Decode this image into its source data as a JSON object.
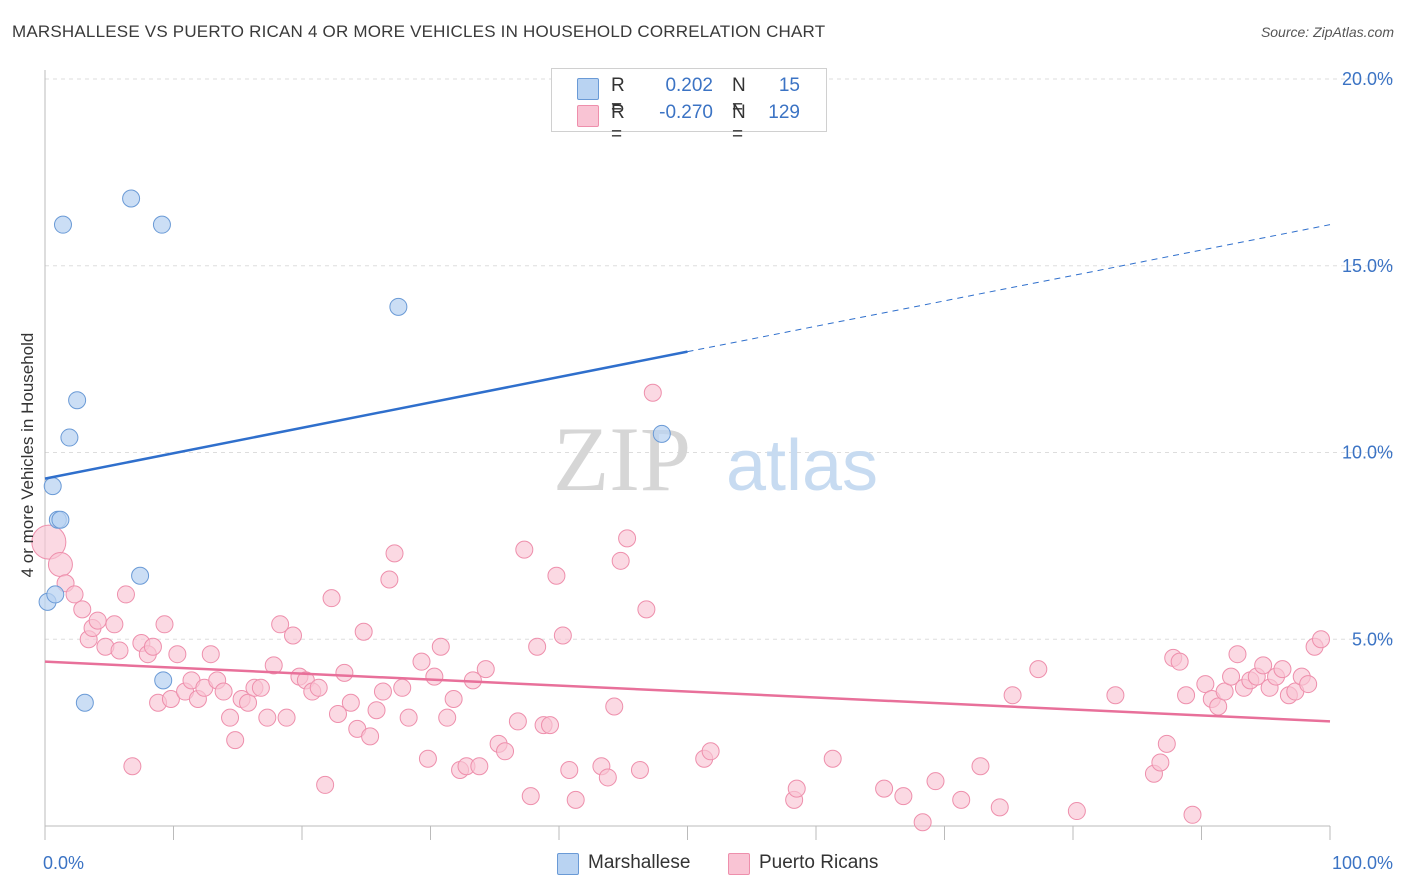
{
  "title": "MARSHALLESE VS PUERTO RICAN 4 OR MORE VEHICLES IN HOUSEHOLD CORRELATION CHART",
  "source": "Source: ZipAtlas.com",
  "watermark": {
    "zip": "ZIP",
    "atlas": "atlas"
  },
  "colors": {
    "marshallese_fill": "#b9d3f2",
    "marshallese_stroke": "#6a9ad6",
    "marshallese_line": "#2f6fcc",
    "puerto_fill": "#f9c4d4",
    "puerto_stroke": "#ee8fac",
    "puerto_line": "#e8709a",
    "tick": "#3b73c4",
    "grid": "#dddddd"
  },
  "legend": {
    "rows": [
      {
        "r_label": "R =",
        "r_value": "0.202",
        "n_label": "N =",
        "n_value": "15"
      },
      {
        "r_label": "R =",
        "r_value": "-0.270",
        "n_label": "N =",
        "n_value": "129"
      }
    ]
  },
  "bottom_legend": [
    {
      "label": "Marshallese"
    },
    {
      "label": "Puerto Ricans"
    }
  ],
  "chart_data": {
    "type": "scatter",
    "title": "MARSHALLESE VS PUERTO RICAN 4 OR MORE VEHICLES IN HOUSEHOLD CORRELATION CHART",
    "xlabel": "",
    "ylabel": "4 or more Vehicles in Household",
    "xlim": [
      0,
      100
    ],
    "ylim": [
      0,
      20
    ],
    "x_tick_labels": [
      "0.0%",
      "100.0%"
    ],
    "y_ticks": [
      5,
      10,
      15,
      20
    ],
    "y_tick_labels": [
      "5.0%",
      "10.0%",
      "15.0%",
      "20.0%"
    ],
    "grid": true,
    "series": [
      {
        "name": "Marshallese",
        "R": 0.202,
        "N": 15,
        "trend": {
          "x0": 0,
          "y0": 9.3,
          "x1": 50,
          "y1": 12.7,
          "dashed_to_x": 100,
          "dashed_to_y": 16.1
        },
        "points": [
          [
            0.2,
            6.0
          ],
          [
            0.8,
            6.2
          ],
          [
            1.0,
            8.2
          ],
          [
            0.6,
            9.1
          ],
          [
            1.2,
            8.2
          ],
          [
            1.4,
            16.1
          ],
          [
            1.9,
            10.4
          ],
          [
            2.5,
            11.4
          ],
          [
            3.1,
            3.3
          ],
          [
            7.4,
            6.7
          ],
          [
            6.7,
            16.8
          ],
          [
            9.1,
            16.1
          ],
          [
            9.2,
            3.9
          ],
          [
            27.5,
            13.9
          ],
          [
            48.0,
            10.5
          ]
        ]
      },
      {
        "name": "Puerto Ricans",
        "R": -0.27,
        "N": 129,
        "trend": {
          "x0": 0,
          "y0": 4.4,
          "x1": 100,
          "y1": 2.8
        },
        "points": [
          [
            0.3,
            7.6
          ],
          [
            1.2,
            7.0
          ],
          [
            1.6,
            6.5
          ],
          [
            2.3,
            6.2
          ],
          [
            2.9,
            5.8
          ],
          [
            3.4,
            5.0
          ],
          [
            3.7,
            5.3
          ],
          [
            4.1,
            5.5
          ],
          [
            4.7,
            4.8
          ],
          [
            5.4,
            5.4
          ],
          [
            5.8,
            4.7
          ],
          [
            6.3,
            6.2
          ],
          [
            6.8,
            1.6
          ],
          [
            7.5,
            4.9
          ],
          [
            8.0,
            4.6
          ],
          [
            8.4,
            4.8
          ],
          [
            8.8,
            3.3
          ],
          [
            9.3,
            5.4
          ],
          [
            9.8,
            3.4
          ],
          [
            10.3,
            4.6
          ],
          [
            10.9,
            3.6
          ],
          [
            11.4,
            3.9
          ],
          [
            11.9,
            3.4
          ],
          [
            12.4,
            3.7
          ],
          [
            12.9,
            4.6
          ],
          [
            13.4,
            3.9
          ],
          [
            13.9,
            3.6
          ],
          [
            14.4,
            2.9
          ],
          [
            14.8,
            2.3
          ],
          [
            15.3,
            3.4
          ],
          [
            15.8,
            3.3
          ],
          [
            16.3,
            3.7
          ],
          [
            16.8,
            3.7
          ],
          [
            17.3,
            2.9
          ],
          [
            17.8,
            4.3
          ],
          [
            18.3,
            5.4
          ],
          [
            18.8,
            2.9
          ],
          [
            19.3,
            5.1
          ],
          [
            19.8,
            4.0
          ],
          [
            20.3,
            3.9
          ],
          [
            20.8,
            3.6
          ],
          [
            21.3,
            3.7
          ],
          [
            21.8,
            1.1
          ],
          [
            22.3,
            6.1
          ],
          [
            22.8,
            3.0
          ],
          [
            23.3,
            4.1
          ],
          [
            23.8,
            3.3
          ],
          [
            24.3,
            2.6
          ],
          [
            24.8,
            5.2
          ],
          [
            25.3,
            2.4
          ],
          [
            25.8,
            3.1
          ],
          [
            26.3,
            3.6
          ],
          [
            26.8,
            6.6
          ],
          [
            27.2,
            7.3
          ],
          [
            27.8,
            3.7
          ],
          [
            28.3,
            2.9
          ],
          [
            29.3,
            4.4
          ],
          [
            29.8,
            1.8
          ],
          [
            30.3,
            4.0
          ],
          [
            30.8,
            4.8
          ],
          [
            31.3,
            2.9
          ],
          [
            31.8,
            3.4
          ],
          [
            32.3,
            1.5
          ],
          [
            32.8,
            1.6
          ],
          [
            33.3,
            3.9
          ],
          [
            33.8,
            1.6
          ],
          [
            34.3,
            4.2
          ],
          [
            35.3,
            2.2
          ],
          [
            35.8,
            2.0
          ],
          [
            36.8,
            2.8
          ],
          [
            37.3,
            7.4
          ],
          [
            37.8,
            0.8
          ],
          [
            38.3,
            4.8
          ],
          [
            38.8,
            2.7
          ],
          [
            39.3,
            2.7
          ],
          [
            39.8,
            6.7
          ],
          [
            40.3,
            5.1
          ],
          [
            40.8,
            1.5
          ],
          [
            41.3,
            0.7
          ],
          [
            43.3,
            1.6
          ],
          [
            43.8,
            1.3
          ],
          [
            44.3,
            3.2
          ],
          [
            44.8,
            7.1
          ],
          [
            45.3,
            7.7
          ],
          [
            46.3,
            1.5
          ],
          [
            46.8,
            5.8
          ],
          [
            47.3,
            11.6
          ],
          [
            51.3,
            1.8
          ],
          [
            58.3,
            0.7
          ],
          [
            65.3,
            1.0
          ],
          [
            66.8,
            0.8
          ],
          [
            68.3,
            0.1
          ],
          [
            69.3,
            1.2
          ],
          [
            71.3,
            0.7
          ],
          [
            72.8,
            1.6
          ],
          [
            74.3,
            0.5
          ],
          [
            75.3,
            3.5
          ],
          [
            77.3,
            4.2
          ],
          [
            80.3,
            0.4
          ],
          [
            83.3,
            3.5
          ],
          [
            86.3,
            1.4
          ],
          [
            86.8,
            1.7
          ],
          [
            87.3,
            2.2
          ],
          [
            87.8,
            4.5
          ],
          [
            88.3,
            4.4
          ],
          [
            88.8,
            3.5
          ],
          [
            89.3,
            0.3
          ],
          [
            90.3,
            3.8
          ],
          [
            90.8,
            3.4
          ],
          [
            91.3,
            3.2
          ],
          [
            91.8,
            3.6
          ],
          [
            92.3,
            4.0
          ],
          [
            92.8,
            4.6
          ],
          [
            93.3,
            3.7
          ],
          [
            93.8,
            3.9
          ],
          [
            94.3,
            4.0
          ],
          [
            94.8,
            4.3
          ],
          [
            95.3,
            3.7
          ],
          [
            95.8,
            4.0
          ],
          [
            96.3,
            4.2
          ],
          [
            96.8,
            3.5
          ],
          [
            97.3,
            3.6
          ],
          [
            97.8,
            4.0
          ],
          [
            98.3,
            3.8
          ],
          [
            98.8,
            4.8
          ],
          [
            99.3,
            5.0
          ],
          [
            61.3,
            1.8
          ],
          [
            51.8,
            2.0
          ],
          [
            58.5,
            1.0
          ]
        ]
      }
    ]
  }
}
